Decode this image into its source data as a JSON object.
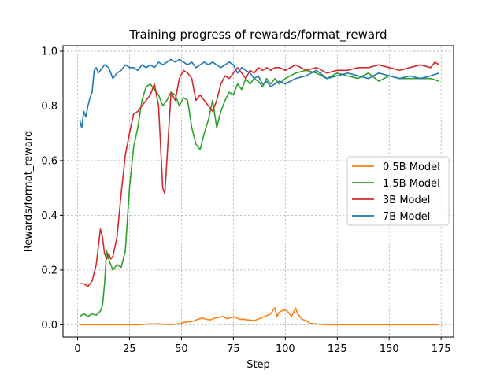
{
  "chart_data": {
    "type": "line",
    "title": "Training progress of rewards/format_reward",
    "xlabel": "Step",
    "ylabel": "Rewards/format_reward",
    "xlim": [
      -7,
      181
    ],
    "ylim": [
      -0.045,
      1.02
    ],
    "xticks": [
      0,
      25,
      50,
      75,
      100,
      125,
      150,
      175
    ],
    "yticks": [
      0.0,
      0.2,
      0.4,
      0.6,
      0.8,
      1.0
    ],
    "xtick_labels": [
      "0",
      "25",
      "50",
      "75",
      "100",
      "125",
      "150",
      "175"
    ],
    "ytick_labels": [
      "0.0",
      "0.2",
      "0.4",
      "0.6",
      "0.8",
      "1.0"
    ],
    "grid": true,
    "legend_position": "center-right",
    "series": [
      {
        "name": "0.5B Model",
        "color": "#ff7f0e",
        "x": [
          1,
          10,
          20,
          30,
          35,
          40,
          45,
          50,
          52,
          55,
          58,
          60,
          62,
          64,
          66,
          70,
          72,
          75,
          78,
          80,
          85,
          90,
          93,
          95,
          96,
          97,
          98,
          100,
          101,
          103,
          105,
          106,
          108,
          110,
          112,
          115,
          120,
          130,
          150,
          174
        ],
        "y": [
          0.0,
          0.0,
          0.0,
          0.0,
          0.003,
          0.003,
          0.0,
          0.005,
          0.01,
          0.012,
          0.02,
          0.025,
          0.02,
          0.018,
          0.025,
          0.03,
          0.022,
          0.03,
          0.02,
          0.02,
          0.015,
          0.03,
          0.04,
          0.062,
          0.03,
          0.045,
          0.05,
          0.055,
          0.05,
          0.03,
          0.06,
          0.04,
          0.02,
          0.015,
          0.005,
          0.003,
          0.0,
          0.0,
          0.0,
          0.0
        ]
      },
      {
        "name": "1.5B Model",
        "color": "#2ca02c",
        "x": [
          1,
          3,
          5,
          7,
          9,
          11,
          12,
          13,
          14,
          15,
          17,
          19,
          21,
          23,
          25,
          27,
          29,
          31,
          33,
          35,
          37,
          39,
          41,
          43,
          45,
          47,
          49,
          51,
          53,
          55,
          57,
          59,
          61,
          63,
          65,
          67,
          69,
          71,
          73,
          75,
          77,
          79,
          81,
          83,
          85,
          87,
          89,
          91,
          93,
          95,
          97,
          100,
          105,
          110,
          115,
          120,
          125,
          130,
          135,
          140,
          145,
          150,
          155,
          160,
          165,
          170,
          174
        ],
        "y": [
          0.03,
          0.04,
          0.03,
          0.04,
          0.035,
          0.05,
          0.07,
          0.15,
          0.27,
          0.24,
          0.2,
          0.22,
          0.21,
          0.27,
          0.5,
          0.65,
          0.72,
          0.82,
          0.87,
          0.88,
          0.86,
          0.84,
          0.8,
          0.82,
          0.85,
          0.84,
          0.8,
          0.83,
          0.82,
          0.72,
          0.66,
          0.64,
          0.7,
          0.75,
          0.82,
          0.72,
          0.78,
          0.82,
          0.85,
          0.84,
          0.88,
          0.86,
          0.9,
          0.88,
          0.9,
          0.89,
          0.87,
          0.9,
          0.88,
          0.9,
          0.88,
          0.9,
          0.92,
          0.93,
          0.92,
          0.9,
          0.92,
          0.91,
          0.9,
          0.92,
          0.89,
          0.91,
          0.9,
          0.9,
          0.9,
          0.9,
          0.89
        ]
      },
      {
        "name": "3B Model",
        "color": "#d62728",
        "x": [
          1,
          3,
          5,
          7,
          9,
          11,
          12,
          13,
          14,
          15,
          16,
          17,
          19,
          21,
          23,
          25,
          27,
          29,
          31,
          33,
          35,
          37,
          39,
          41,
          42,
          43,
          45,
          47,
          49,
          51,
          53,
          55,
          57,
          59,
          61,
          63,
          65,
          67,
          69,
          71,
          73,
          75,
          77,
          79,
          81,
          83,
          85,
          87,
          89,
          91,
          93,
          95,
          97,
          100,
          105,
          110,
          115,
          120,
          125,
          130,
          135,
          140,
          145,
          150,
          155,
          160,
          165,
          170,
          172,
          174
        ],
        "y": [
          0.15,
          0.15,
          0.14,
          0.16,
          0.22,
          0.35,
          0.32,
          0.26,
          0.24,
          0.26,
          0.24,
          0.25,
          0.32,
          0.48,
          0.62,
          0.7,
          0.77,
          0.78,
          0.8,
          0.82,
          0.84,
          0.88,
          0.8,
          0.5,
          0.48,
          0.6,
          0.85,
          0.82,
          0.9,
          0.93,
          0.92,
          0.9,
          0.82,
          0.84,
          0.82,
          0.8,
          0.78,
          0.82,
          0.88,
          0.91,
          0.9,
          0.92,
          0.94,
          0.92,
          0.9,
          0.93,
          0.92,
          0.94,
          0.93,
          0.94,
          0.93,
          0.94,
          0.94,
          0.93,
          0.95,
          0.93,
          0.94,
          0.92,
          0.93,
          0.93,
          0.94,
          0.94,
          0.95,
          0.94,
          0.93,
          0.94,
          0.95,
          0.94,
          0.96,
          0.95
        ]
      },
      {
        "name": "7B Model",
        "color": "#1f77b4",
        "x": [
          1,
          2,
          3,
          4,
          5,
          6,
          7,
          8,
          9,
          10,
          11,
          12,
          13,
          15,
          17,
          19,
          21,
          23,
          25,
          27,
          29,
          31,
          33,
          35,
          37,
          39,
          41,
          43,
          45,
          47,
          49,
          51,
          53,
          55,
          57,
          59,
          61,
          63,
          65,
          67,
          69,
          71,
          73,
          75,
          77,
          79,
          81,
          83,
          85,
          87,
          89,
          91,
          93,
          95,
          97,
          100,
          105,
          110,
          115,
          120,
          125,
          130,
          135,
          140,
          145,
          150,
          155,
          160,
          165,
          170,
          174
        ],
        "y": [
          0.75,
          0.72,
          0.78,
          0.76,
          0.8,
          0.83,
          0.85,
          0.93,
          0.94,
          0.92,
          0.93,
          0.94,
          0.95,
          0.94,
          0.9,
          0.92,
          0.93,
          0.95,
          0.94,
          0.94,
          0.93,
          0.95,
          0.94,
          0.95,
          0.94,
          0.96,
          0.95,
          0.96,
          0.97,
          0.96,
          0.97,
          0.96,
          0.95,
          0.96,
          0.94,
          0.95,
          0.96,
          0.95,
          0.96,
          0.95,
          0.94,
          0.95,
          0.96,
          0.95,
          0.92,
          0.94,
          0.93,
          0.92,
          0.9,
          0.91,
          0.88,
          0.89,
          0.87,
          0.88,
          0.89,
          0.88,
          0.9,
          0.91,
          0.93,
          0.9,
          0.91,
          0.92,
          0.91,
          0.9,
          0.92,
          0.91,
          0.9,
          0.91,
          0.9,
          0.91,
          0.92
        ]
      }
    ]
  }
}
